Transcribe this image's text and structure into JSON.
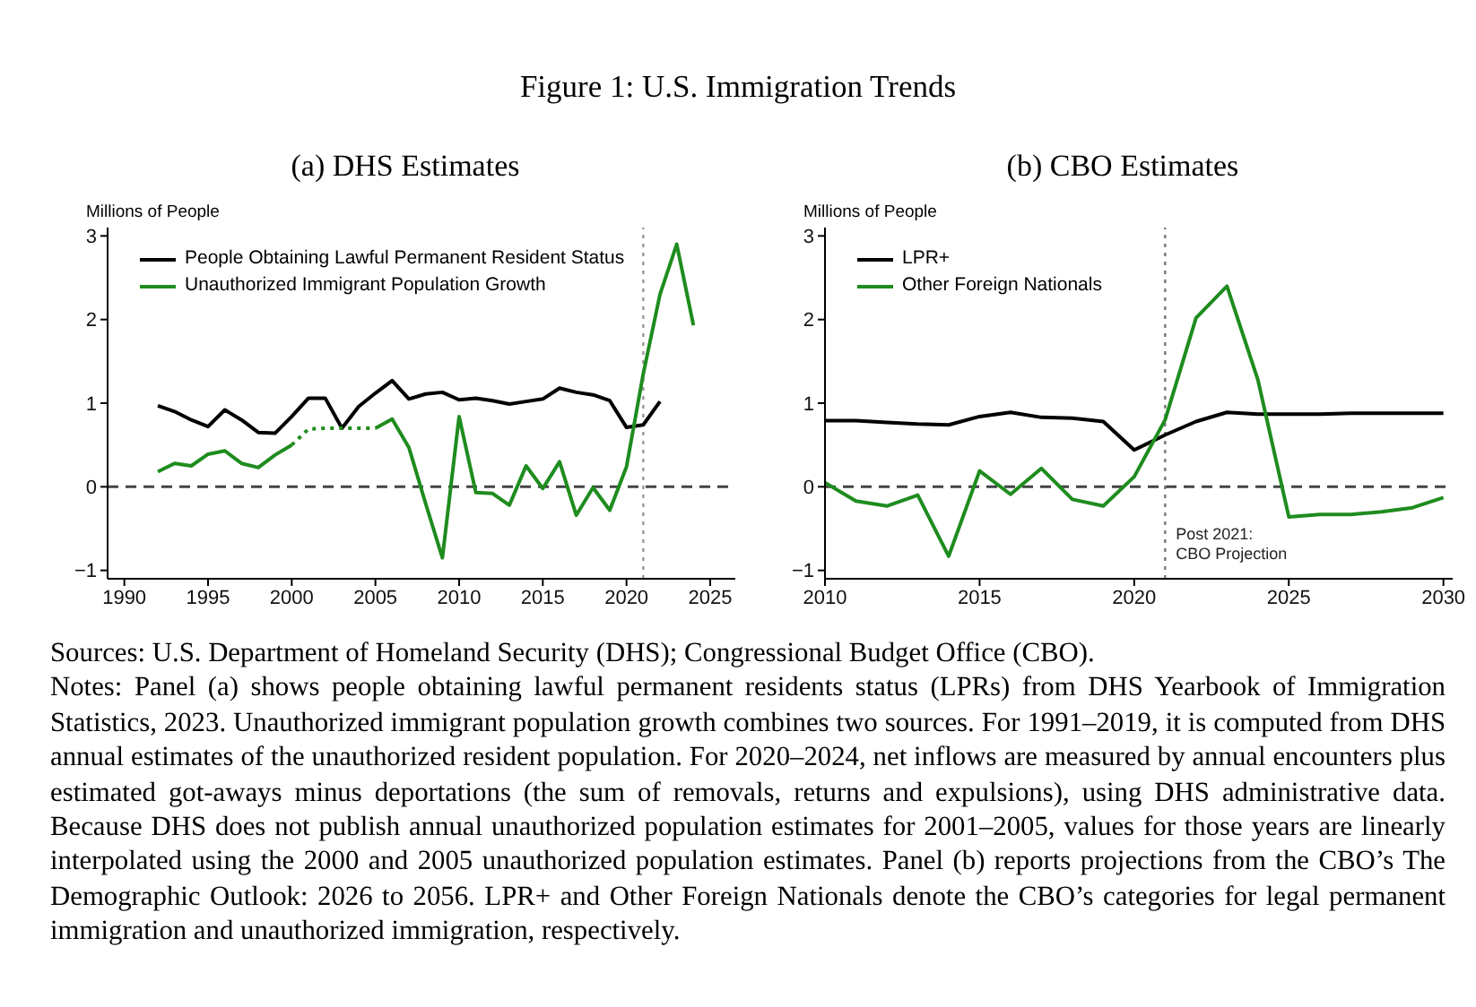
{
  "chart_data": [
    {
      "type": "other",
      "title": "Figure 1: U.S. Immigration Trends"
    },
    {
      "type": "line",
      "title": "(a) DHS Estimates",
      "ylabel": "Millions of People",
      "xlim": [
        1989,
        2026.5
      ],
      "xticks": [
        1990,
        1995,
        2000,
        2005,
        2010,
        2015,
        2020,
        2025
      ],
      "ylim": [
        -1.1,
        3.1
      ],
      "yticks": [
        {
          "value": -1,
          "label": "−1"
        },
        0,
        1,
        2,
        3
      ],
      "legend": "top left",
      "marker": "none",
      "series": [
        {
          "name": "People Obtaining Lawful Permanent Resident Status",
          "color": "#000000",
          "line_style": "solid",
          "x": [
            1992,
            1993,
            1994,
            1995,
            1996,
            1997,
            1998,
            1999,
            2000,
            2001,
            2002,
            2003,
            2004,
            2005,
            2006,
            2007,
            2008,
            2009,
            2010,
            2011,
            2012,
            2013,
            2014,
            2015,
            2016,
            2017,
            2018,
            2019,
            2020,
            2021,
            2022
          ],
          "values": [
            0.97,
            0.9,
            0.8,
            0.72,
            0.92,
            0.8,
            0.65,
            0.64,
            0.84,
            1.06,
            1.06,
            0.7,
            0.96,
            1.12,
            1.27,
            1.05,
            1.11,
            1.13,
            1.04,
            1.06,
            1.03,
            0.99,
            1.02,
            1.05,
            1.18,
            1.13,
            1.1,
            1.03,
            0.71,
            0.74,
            1.02
          ]
        },
        {
          "name": "Unauthorized Immigrant Population Growth",
          "color": "#1e8c1e",
          "line_style": "solid",
          "x": [
            1992,
            1993,
            1994,
            1995,
            1996,
            1997,
            1998,
            1999,
            2000
          ],
          "values": [
            0.18,
            0.28,
            0.25,
            0.39,
            0.43,
            0.28,
            0.23,
            0.38,
            0.5
          ]
        },
        {
          "color": "#1e8c1e",
          "line_style": "dotted",
          "x": [
            2000,
            2001,
            2002,
            2003,
            2004,
            2005
          ],
          "values": [
            0.5,
            0.69,
            0.7,
            0.7,
            0.7,
            0.7
          ]
        },
        {
          "color": "#1e8c1e",
          "line_style": "solid",
          "x": [
            2005,
            2006,
            2007,
            2008,
            2009,
            2010,
            2011,
            2012,
            2013,
            2014,
            2015,
            2016,
            2017,
            2018,
            2019,
            2020,
            2021,
            2022,
            2023,
            2024
          ],
          "values": [
            0.7,
            0.81,
            0.47,
            -0.2,
            -0.85,
            0.84,
            -0.07,
            -0.08,
            -0.22,
            0.25,
            -0.02,
            0.3,
            -0.34,
            -0.01,
            -0.28,
            0.24,
            1.35,
            2.3,
            2.9,
            1.93
          ]
        }
      ],
      "ref_lines": [
        {
          "axis": "y",
          "value": 0,
          "color": "#444444",
          "line_style": "dashed"
        },
        {
          "axis": "x",
          "value": 2021,
          "color": "#999999",
          "line_style": "dotted"
        }
      ]
    },
    {
      "type": "line",
      "title": "(b) CBO Estimates",
      "ylabel": "Millions of People",
      "xlim": [
        2010,
        2030.3
      ],
      "xticks": [
        2010,
        2015,
        2020,
        2025,
        2030
      ],
      "ylim": [
        -1.1,
        3.1
      ],
      "yticks": [
        {
          "value": -1,
          "label": "−1"
        },
        0,
        1,
        2,
        3
      ],
      "legend": "top left",
      "marker": "none",
      "series": [
        {
          "name": "LPR+",
          "color": "#000000",
          "line_style": "solid",
          "x": [
            2010,
            2011,
            2012,
            2013,
            2014,
            2015,
            2016,
            2017,
            2018,
            2019,
            2020,
            2021,
            2022,
            2023,
            2024,
            2025,
            2026,
            2027,
            2028,
            2029,
            2030
          ],
          "values": [
            0.79,
            0.79,
            0.77,
            0.75,
            0.74,
            0.84,
            0.89,
            0.83,
            0.82,
            0.78,
            0.44,
            0.62,
            0.78,
            0.89,
            0.87,
            0.87,
            0.87,
            0.88,
            0.88,
            0.88,
            0.88
          ]
        },
        {
          "name": "Other Foreign Nationals",
          "color": "#1e8c1e",
          "line_style": "solid",
          "x": [
            2010,
            2011,
            2012,
            2013,
            2014,
            2015,
            2016,
            2017,
            2018,
            2019,
            2020,
            2021,
            2022,
            2023,
            2024,
            2025,
            2026,
            2027,
            2028,
            2029,
            2030
          ],
          "values": [
            0.05,
            -0.17,
            -0.23,
            -0.1,
            -0.83,
            0.19,
            -0.09,
            0.22,
            -0.15,
            -0.23,
            0.12,
            0.8,
            2.02,
            2.4,
            1.28,
            -0.36,
            -0.33,
            -0.33,
            -0.3,
            -0.25,
            -0.13
          ]
        }
      ],
      "ref_lines": [
        {
          "axis": "y",
          "value": 0,
          "color": "#444444",
          "line_style": "dashed"
        },
        {
          "axis": "x",
          "value": 2021,
          "color": "#777777",
          "line_style": "dotted",
          "label": "Post 2021:\nCBO Projection"
        }
      ]
    },
    {
      "type": "other",
      "annotations": [
        "Sources: U.S. Department of Homeland Security (DHS); Congressional Budget Office (CBO).",
        "Notes: Panel (a) shows people obtaining lawful permanent residents status (LPRs) from DHS Yearbook of Immigration Statistics, 2023. Unauthorized immigrant population growth combines two sources. For 1991–2019, it is computed from DHS annual estimates of the unauthorized resident population. For 2020–2024, net inflows are measured by annual encounters plus estimated got-aways minus deportations (the sum of removals, returns and expulsions), using DHS administrative data. Because DHS does not publish annual unauthorized population estimates for 2001–2005, values for those years are linearly interpolated using the 2000 and 2005 unauthorized population estimates. Panel (b) reports projections from the CBO’s The Demographic Outlook: 2026 to 2056. LPR+ and Other Foreign Nationals denote the CBO’s categories for legal permanent immigration and unauthorized immigration, respectively."
      ]
    }
  ]
}
